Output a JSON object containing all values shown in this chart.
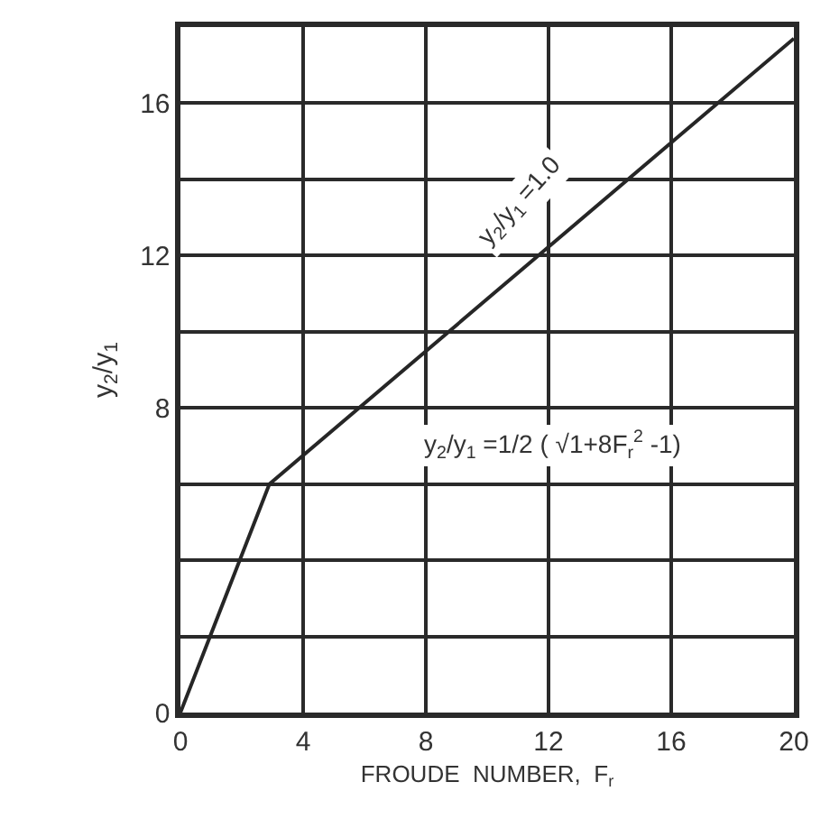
{
  "chart_data": {
    "type": "line",
    "xlabel": "FROUDE  NUMBER,  F$_{r}$",
    "ylabel": "y$_{2}$/y$_{1}$",
    "x": [
      0,
      2.9,
      20
    ],
    "values": [
      0,
      6,
      17.7
    ],
    "color": "#262626",
    "xlim": [
      0,
      20
    ],
    "ylim": [
      0,
      18
    ],
    "xticks": [
      0,
      4,
      8,
      12,
      16,
      20
    ],
    "yticks": [
      0,
      {
        "value": 2,
        "label": null
      },
      {
        "value": 4,
        "label": null
      },
      {
        "value": 6,
        "label": null
      },
      8,
      {
        "value": 10,
        "label": null
      },
      12,
      {
        "value": 14,
        "label": null
      },
      16
    ],
    "grid": true,
    "marker": "none",
    "line_style": "solid",
    "annotations": [
      "y$_{2}$/y$_{1}$ =1.0",
      "y$_{2}$/y$_{1}$ =1/2 ( √1+8F$_{r}$$^{2}$ -1)"
    ]
  }
}
